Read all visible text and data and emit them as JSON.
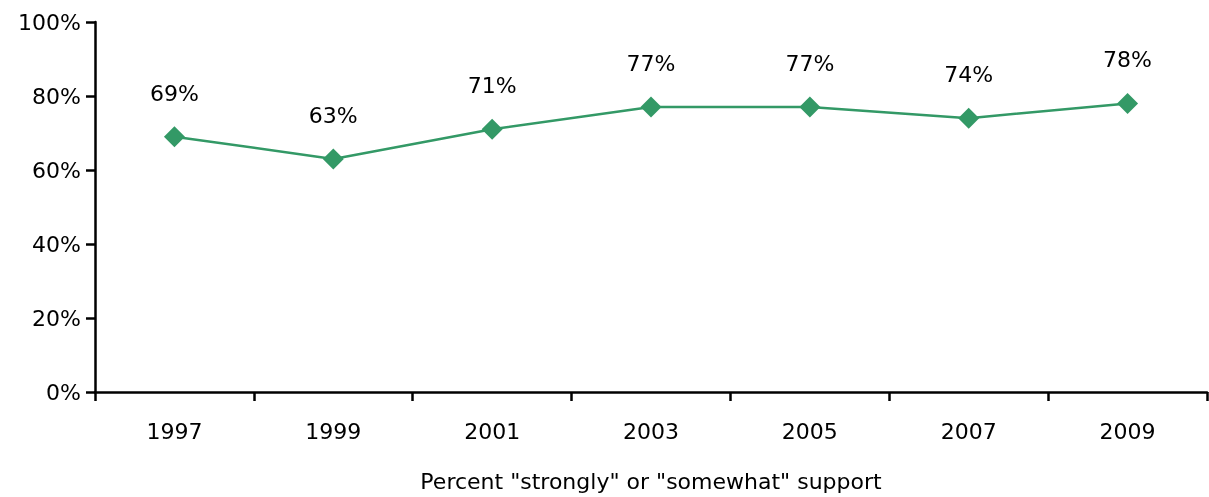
{
  "chart_data": {
    "type": "line",
    "xlabel": "Percent \"strongly\" or \"somewhat\" support",
    "categories": [
      "1997",
      "1999",
      "2001",
      "2003",
      "2005",
      "2007",
      "2009"
    ],
    "series": [
      {
        "color": "#339966",
        "values": [
          69,
          63,
          71,
          77,
          77,
          74,
          78
        ],
        "value_labels": [
          "69%",
          "63%",
          "71%",
          "77%",
          "77%",
          "74%",
          "78%"
        ]
      }
    ],
    "ylim": [
      0,
      100
    ],
    "yticks": [
      {
        "value": 0,
        "label": "0%"
      },
      {
        "value": 20,
        "label": "20%"
      },
      {
        "value": 40,
        "label": "40%"
      },
      {
        "value": 60,
        "label": "60%"
      },
      {
        "value": 80,
        "label": "80%"
      },
      {
        "value": 100,
        "label": "100%"
      }
    ],
    "grid": false,
    "marker": "diamond",
    "line_style": "solid"
  }
}
